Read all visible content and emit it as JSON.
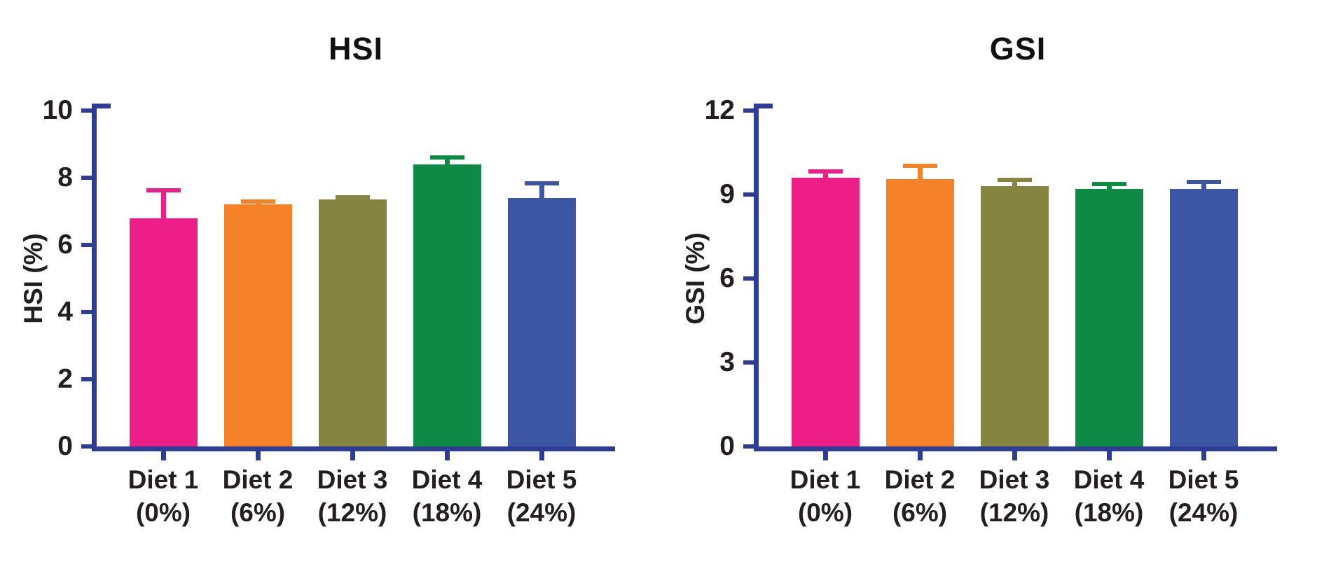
{
  "figure": {
    "background_color": "#FFFFFF",
    "axis_color": "#2D3C94",
    "text_color": "#231F20",
    "bar_colors": [
      "#EC1E87",
      "#F58228",
      "#868441",
      "#0E8A44",
      "#3D55A5"
    ],
    "bar_color_names": [
      "magenta-pink",
      "orange",
      "olive",
      "green",
      "royal-blue"
    ],
    "categories_line1": [
      "Diet 1",
      "Diet 2",
      "Diet 3",
      "Diet 4",
      "Diet 5"
    ],
    "categories_line2": [
      "(0%)",
      "(6%)",
      "(12%)",
      "(18%)",
      "(24%)"
    ]
  },
  "chart_data": [
    {
      "type": "bar",
      "title": "HSI",
      "xlabel": "",
      "ylabel": "HSI (%)",
      "categories": [
        "Diet 1 (0%)",
        "Diet 2 (6%)",
        "Diet 3 (12%)",
        "Diet 4 (18%)",
        "Diet 5 (24%)"
      ],
      "values": [
        6.8,
        7.2,
        7.35,
        8.4,
        7.4
      ],
      "errors_upper": [
        0.85,
        0.12,
        0.08,
        0.22,
        0.45
      ],
      "error_style": "upper-only-cap",
      "ylim": [
        0,
        10
      ],
      "yticks": [
        0,
        2,
        4,
        6,
        8,
        10
      ],
      "grid": false,
      "legend": "none"
    },
    {
      "type": "bar",
      "title": "GSI",
      "xlabel": "",
      "ylabel": "GSI (%)",
      "categories": [
        "Diet 1 (0%)",
        "Diet 2 (6%)",
        "Diet 3 (12%)",
        "Diet 4 (18%)",
        "Diet 5 (24%)"
      ],
      "values": [
        9.6,
        9.55,
        9.3,
        9.2,
        9.2
      ],
      "errors_upper": [
        0.25,
        0.5,
        0.25,
        0.2,
        0.28
      ],
      "error_style": "upper-only-cap",
      "ylim": [
        0,
        12
      ],
      "yticks": [
        0,
        3,
        6,
        9,
        12
      ],
      "grid": false,
      "legend": "none"
    }
  ]
}
